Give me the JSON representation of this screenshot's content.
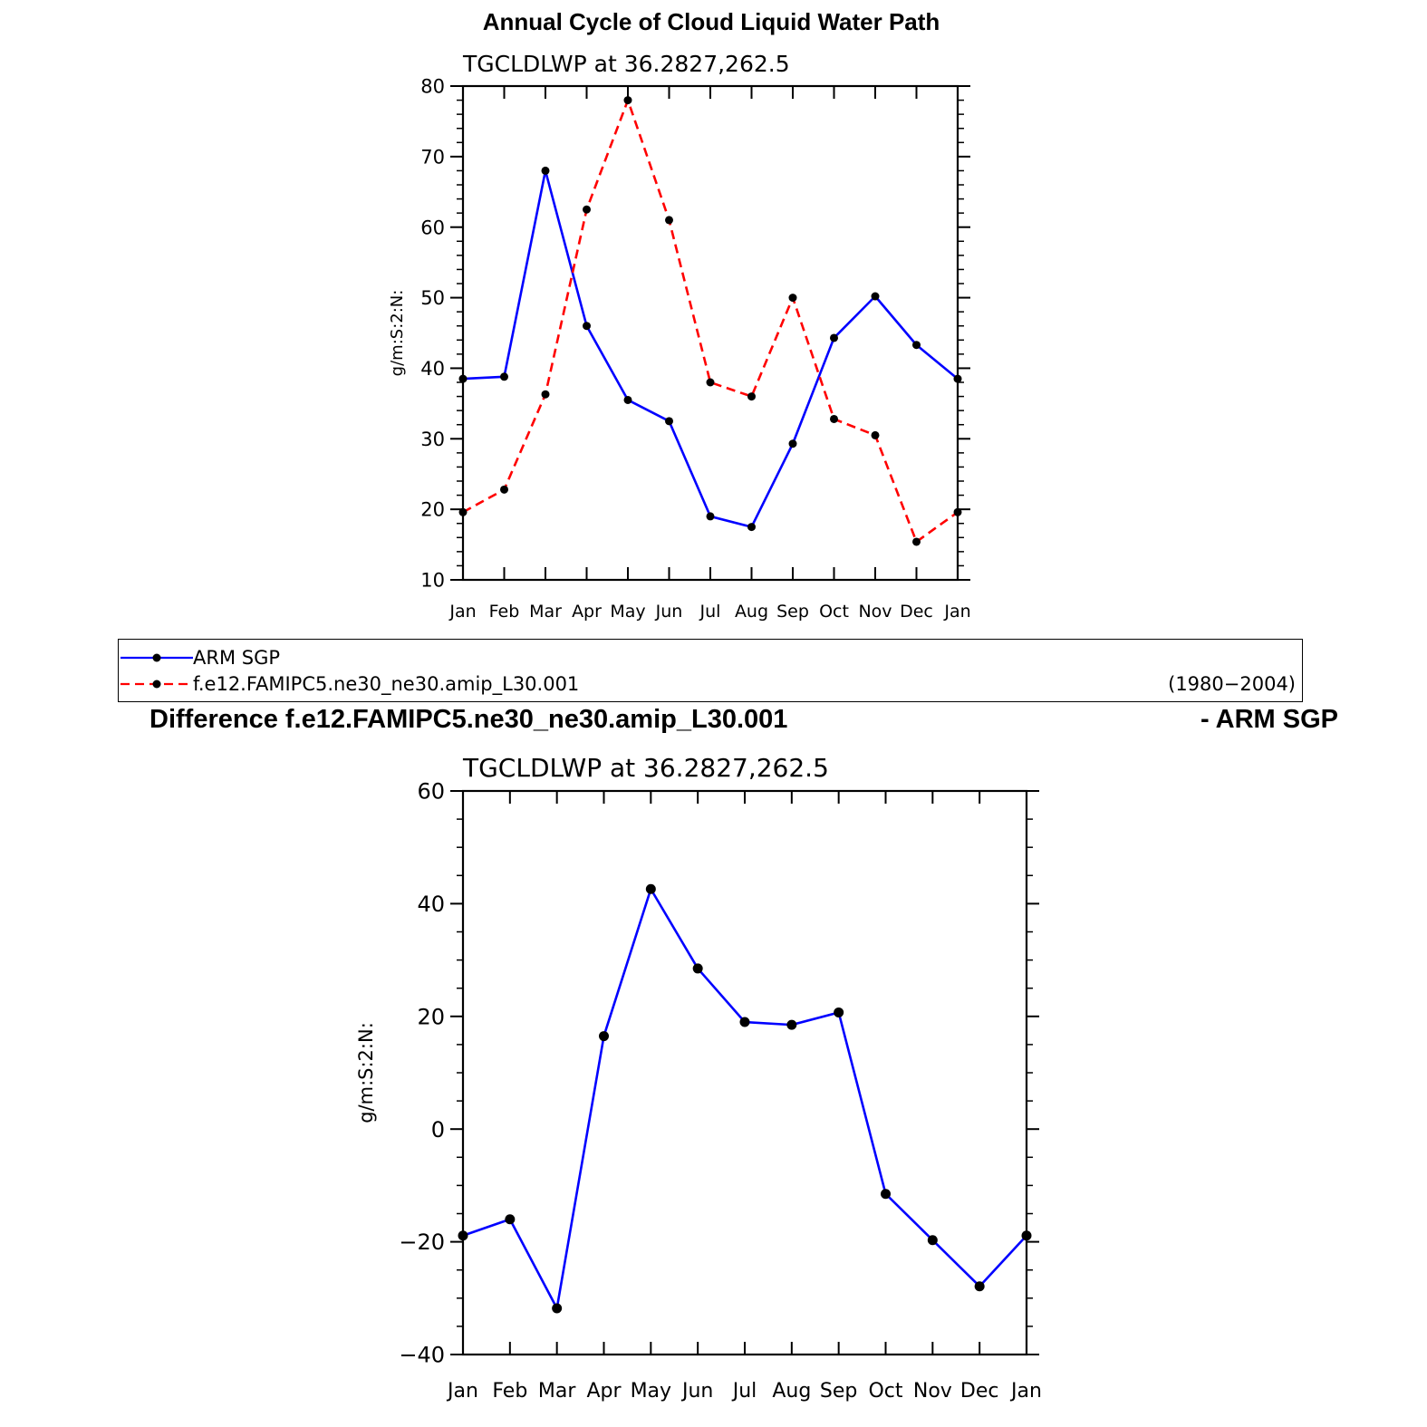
{
  "page": {
    "title": "Annual Cycle of Cloud Liquid Water Path",
    "diff_title_left": "Difference f.e12.FAMIPC5.ne30_ne30.amip_L30.001",
    "diff_title_right": "- ARM SGP"
  },
  "legend": {
    "entries": [
      {
        "label": "ARM SGP",
        "color": "#0000ff",
        "dash": "solid"
      },
      {
        "label": "f.e12.FAMIPC5.ne30_ne30.amip_L30.001",
        "color": "#ff0000",
        "dash": "dashed"
      }
    ],
    "years": "(1980−2004)"
  },
  "chart_data": [
    {
      "type": "line",
      "title": "Annual Cycle of Cloud Liquid Water Path",
      "subtitle": "TGCLDLWP  at  36.2827,262.5",
      "ylabel": "g/m:S:2:N:",
      "xlabel": "",
      "categories": [
        "Jan",
        "Feb",
        "Mar",
        "Apr",
        "May",
        "Jun",
        "Jul",
        "Aug",
        "Sep",
        "Oct",
        "Nov",
        "Dec",
        "Jan"
      ],
      "ylim": [
        10,
        80
      ],
      "yticks": [
        "10",
        "20",
        "30",
        "40",
        "50",
        "60",
        "70",
        "80"
      ],
      "series": [
        {
          "name": "ARM SGP",
          "color": "#0000ff",
          "dash": "solid",
          "values": [
            38.5,
            38.8,
            68.0,
            46.0,
            35.5,
            32.5,
            19.0,
            17.5,
            29.3,
            44.3,
            50.2,
            43.3,
            38.5
          ]
        },
        {
          "name": "f.e12.FAMIPC5.ne30_ne30.amip_L30.001",
          "color": "#ff0000",
          "dash": "dashed",
          "values": [
            19.6,
            22.8,
            36.3,
            62.5,
            78.0,
            61.0,
            38.0,
            36.0,
            50.0,
            32.8,
            30.5,
            15.4,
            19.6
          ]
        }
      ],
      "grid": false,
      "legend": "below"
    },
    {
      "type": "line",
      "title": "Difference f.e12.FAMIPC5.ne30_ne30.amip_L30.001 - ARM SGP",
      "subtitle": "TGCLDLWP  at  36.2827,262.5",
      "ylabel": "g/m:S:2:N:",
      "xlabel": "",
      "categories": [
        "Jan",
        "Feb",
        "Mar",
        "Apr",
        "May",
        "Jun",
        "Jul",
        "Aug",
        "Sep",
        "Oct",
        "Nov",
        "Dec",
        "Jan"
      ],
      "ylim": [
        -40,
        60
      ],
      "yticks": [
        "−40",
        "−20",
        "0",
        "20",
        "40",
        "60"
      ],
      "series": [
        {
          "name": "",
          "color": "#0000ff",
          "dash": "solid",
          "values": [
            -18.9,
            -16.0,
            -31.8,
            16.5,
            42.6,
            28.5,
            19.0,
            18.5,
            20.7,
            -11.5,
            -19.7,
            -27.9,
            -18.9
          ]
        }
      ],
      "grid": false,
      "legend": "none"
    }
  ]
}
